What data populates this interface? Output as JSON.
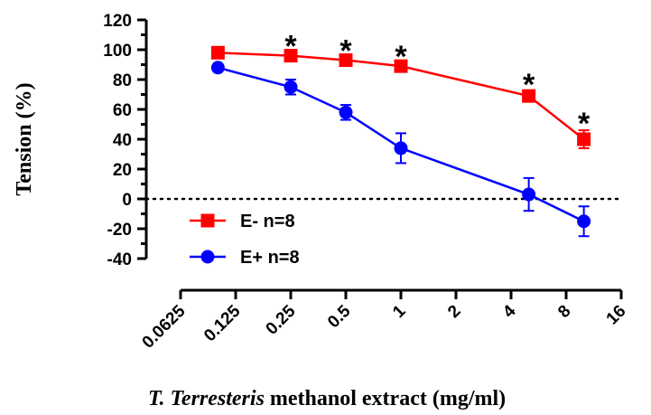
{
  "chart_data": {
    "type": "line",
    "xscale": "log2",
    "xlabel_italic": "T. Terresteris",
    "xlabel_rest": " methanol extract (mg/ml)",
    "ylabel": "Tension (%)",
    "xlim": [
      0.0625,
      16
    ],
    "ylim": [
      -40,
      120
    ],
    "x_ticks": [
      0.0625,
      0.125,
      0.25,
      0.5,
      1,
      2,
      4,
      8,
      16
    ],
    "x_tick_labels": [
      "0.0625",
      "0.125",
      "0.25",
      "0.5",
      "1",
      "2",
      "4",
      "8",
      "16"
    ],
    "y_ticks": [
      -40,
      -20,
      0,
      20,
      40,
      60,
      80,
      100,
      120
    ],
    "y_tick_labels": [
      "-40",
      "-20",
      "0",
      "20",
      "40",
      "60",
      "80",
      "100",
      "120"
    ],
    "reference_line": {
      "y": 0,
      "style": "dotted"
    },
    "legend_position": "bottom-left",
    "series": [
      {
        "name": "E- n=8",
        "color": "#ff0000",
        "marker": "square",
        "x": [
          0.1,
          0.25,
          0.5,
          1,
          5,
          10
        ],
        "y": [
          98,
          96,
          93,
          89,
          69,
          40
        ],
        "err": [
          2,
          2,
          2,
          2,
          3,
          6
        ]
      },
      {
        "name": "E+ n=8",
        "color": "#0000ff",
        "marker": "circle",
        "x": [
          0.1,
          0.25,
          0.5,
          1,
          5,
          10
        ],
        "y": [
          88,
          75,
          58,
          34,
          3,
          -15
        ],
        "err": [
          2,
          5,
          5,
          10,
          11,
          10
        ]
      }
    ],
    "significance": {
      "label": "*",
      "x": [
        0.25,
        0.5,
        1,
        5,
        10
      ]
    }
  }
}
